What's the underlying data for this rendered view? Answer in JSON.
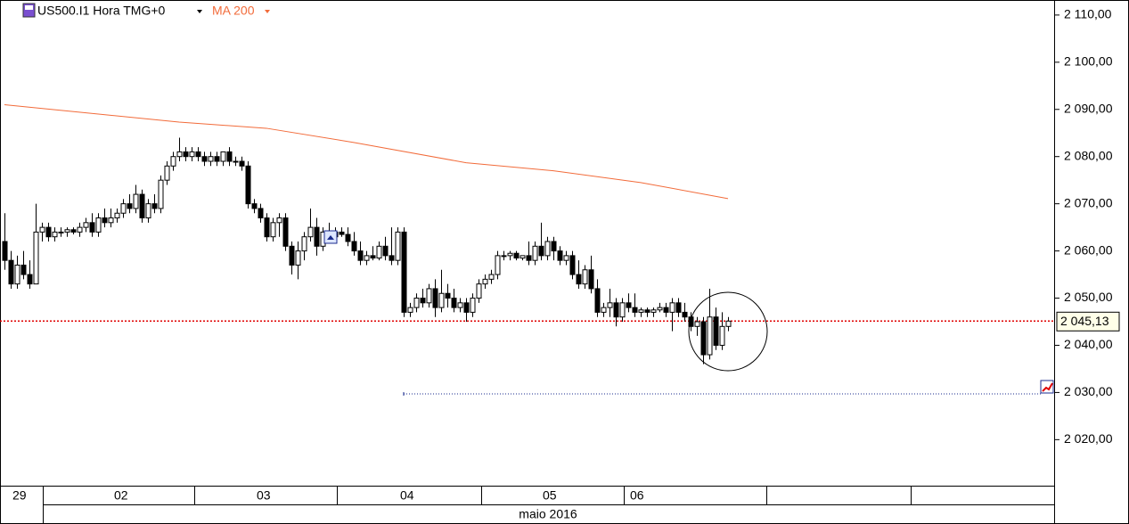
{
  "chart_data": {
    "type": "candlestick",
    "title": "US500.I1 Hora TMG+0",
    "indicator_label": "MA 200",
    "ylim": [
      2011,
      2113
    ],
    "yticks": [
      {
        "value": 2020,
        "label": "2 020,00"
      },
      {
        "value": 2030,
        "label": "2 030,00"
      },
      {
        "value": 2040,
        "label": "2 040,00"
      },
      {
        "value": 2050,
        "label": "2 050,00"
      },
      {
        "value": 2060,
        "label": "2 060,00"
      },
      {
        "value": 2070,
        "label": "2 070,00"
      },
      {
        "value": 2080,
        "label": "2 080,00"
      },
      {
        "value": 2090,
        "label": "2 090,00"
      },
      {
        "value": 2100,
        "label": "2 100,00"
      },
      {
        "value": 2110,
        "label": "2 110,00"
      }
    ],
    "day_labels": [
      "29",
      "02",
      "03",
      "04",
      "05",
      "06"
    ],
    "month_label": "maio 2016",
    "last_price": {
      "value": 2045.13,
      "label": "2 045,13",
      "color": "#e00000"
    },
    "level_line": {
      "value": 2029.7,
      "start_index": 64,
      "color": "#1a2a8c"
    },
    "ma": {
      "name": "MA 200",
      "color": "#f26b3a",
      "x": [
        0,
        28,
        42,
        56,
        74,
        88,
        102,
        116
      ],
      "values": [
        2091,
        2087.3,
        2086,
        2083,
        2078.7,
        2077,
        2074.5,
        2071.1
      ]
    },
    "ohlc": [
      [
        2062,
        2068,
        2056,
        2058
      ],
      [
        2058,
        2060,
        2052,
        2053
      ],
      [
        2053,
        2059,
        2052,
        2057
      ],
      [
        2057,
        2060,
        2054,
        2055
      ],
      [
        2055,
        2058,
        2052,
        2053
      ],
      [
        2053,
        2070,
        2053,
        2064
      ],
      [
        2064,
        2066,
        2062,
        2065
      ],
      [
        2065,
        2066,
        2062,
        2063
      ],
      [
        2063,
        2065,
        2062,
        2064
      ],
      [
        2064,
        2065,
        2063,
        2064
      ],
      [
        2064,
        2065,
        2063,
        2064.5
      ],
      [
        2064.5,
        2065,
        2063.5,
        2064
      ],
      [
        2064,
        2066,
        2063,
        2065
      ],
      [
        2065,
        2067,
        2064,
        2066
      ],
      [
        2066,
        2068,
        2063,
        2064
      ],
      [
        2064,
        2068,
        2063,
        2067
      ],
      [
        2067,
        2069,
        2065,
        2066
      ],
      [
        2066,
        2069,
        2065,
        2067
      ],
      [
        2067,
        2069,
        2066,
        2068
      ],
      [
        2068,
        2071,
        2067,
        2070
      ],
      [
        2070,
        2072,
        2068,
        2069
      ],
      [
        2069,
        2074,
        2068,
        2072
      ],
      [
        2072,
        2073,
        2066,
        2067
      ],
      [
        2067,
        2071,
        2066,
        2070
      ],
      [
        2070,
        2072,
        2068,
        2069
      ],
      [
        2069,
        2076,
        2068,
        2075
      ],
      [
        2075,
        2079,
        2074,
        2078
      ],
      [
        2078,
        2081,
        2077,
        2080
      ],
      [
        2080,
        2084,
        2079,
        2081
      ],
      [
        2081,
        2082,
        2079,
        2080
      ],
      [
        2080,
        2082,
        2079,
        2081
      ],
      [
        2081,
        2082,
        2079,
        2080
      ],
      [
        2080,
        2081,
        2078,
        2079
      ],
      [
        2079,
        2081,
        2078,
        2080
      ],
      [
        2080,
        2081,
        2078,
        2079
      ],
      [
        2079,
        2081,
        2078,
        2081
      ],
      [
        2081,
        2082,
        2078,
        2079
      ],
      [
        2079,
        2080,
        2078,
        2079
      ],
      [
        2079,
        2080,
        2077,
        2078
      ],
      [
        2078,
        2079,
        2069,
        2070
      ],
      [
        2070,
        2071,
        2068,
        2069
      ],
      [
        2069,
        2070,
        2066,
        2067
      ],
      [
        2067,
        2068,
        2062,
        2063
      ],
      [
        2063,
        2067,
        2062,
        2066
      ],
      [
        2066,
        2068,
        2063,
        2067
      ],
      [
        2067,
        2068,
        2060,
        2061
      ],
      [
        2061,
        2062,
        2055,
        2057
      ],
      [
        2057,
        2062,
        2054,
        2060
      ],
      [
        2060,
        2064,
        2058,
        2063
      ],
      [
        2063,
        2069,
        2062,
        2065
      ],
      [
        2065,
        2067,
        2059,
        2061
      ],
      [
        2061,
        2065,
        2060,
        2064
      ],
      [
        2064,
        2066,
        2062,
        2063
      ],
      [
        2063,
        2065,
        2062,
        2064
      ],
      [
        2064,
        2065,
        2063,
        2063.5
      ],
      [
        2063.5,
        2065,
        2061,
        2062
      ],
      [
        2062,
        2064,
        2059,
        2060
      ],
      [
        2060,
        2062,
        2057,
        2058
      ],
      [
        2058,
        2060,
        2057,
        2059
      ],
      [
        2059,
        2061,
        2058,
        2058.5
      ],
      [
        2058.5,
        2062,
        2058,
        2061
      ],
      [
        2061,
        2063,
        2058,
        2059
      ],
      [
        2059,
        2065,
        2057,
        2058
      ],
      [
        2058,
        2065,
        2057,
        2064
      ],
      [
        2064,
        2065,
        2046,
        2047
      ],
      [
        2047,
        2049,
        2046,
        2048
      ],
      [
        2048,
        2051,
        2047,
        2050
      ],
      [
        2050,
        2052,
        2048,
        2049
      ],
      [
        2049,
        2053,
        2048,
        2052
      ],
      [
        2052,
        2054,
        2046,
        2048
      ],
      [
        2048,
        2056,
        2047,
        2051
      ],
      [
        2051,
        2053,
        2048,
        2050
      ],
      [
        2050,
        2052,
        2047,
        2048
      ],
      [
        2048,
        2050,
        2047,
        2049
      ],
      [
        2049,
        2050,
        2045,
        2047
      ],
      [
        2047,
        2051,
        2046,
        2050
      ],
      [
        2050,
        2054,
        2049,
        2053
      ],
      [
        2053,
        2055,
        2052,
        2054
      ],
      [
        2054,
        2056,
        2053,
        2055
      ],
      [
        2055,
        2060,
        2054,
        2059
      ],
      [
        2059,
        2060,
        2058,
        2059
      ],
      [
        2059,
        2060,
        2058,
        2059.5
      ],
      [
        2059.5,
        2060,
        2058,
        2058.5
      ],
      [
        2058.5,
        2059,
        2058,
        2059
      ],
      [
        2059,
        2062,
        2057,
        2058
      ],
      [
        2058,
        2062,
        2057,
        2061
      ],
      [
        2061,
        2066,
        2058,
        2059
      ],
      [
        2059,
        2063,
        2058,
        2062
      ],
      [
        2062,
        2063,
        2058,
        2060
      ],
      [
        2060,
        2061,
        2057,
        2058
      ],
      [
        2058,
        2060,
        2057,
        2059
      ],
      [
        2059,
        2060,
        2054,
        2055
      ],
      [
        2055,
        2058,
        2052,
        2053
      ],
      [
        2053,
        2057,
        2052,
        2056
      ],
      [
        2056,
        2059,
        2051,
        2052
      ],
      [
        2052,
        2054,
        2046,
        2047
      ],
      [
        2047,
        2049,
        2046,
        2048
      ],
      [
        2048,
        2052,
        2046,
        2049
      ],
      [
        2049,
        2050,
        2044,
        2046
      ],
      [
        2046,
        2050,
        2045,
        2049
      ],
      [
        2049,
        2051,
        2047,
        2048
      ],
      [
        2048,
        2051,
        2046,
        2047
      ],
      [
        2047,
        2048,
        2046,
        2047.5
      ],
      [
        2047.5,
        2048,
        2046,
        2047
      ],
      [
        2047,
        2048,
        2046,
        2047.5
      ],
      [
        2047.5,
        2049,
        2047,
        2048
      ],
      [
        2048,
        2049,
        2046,
        2047
      ],
      [
        2047,
        2050,
        2043,
        2049
      ],
      [
        2049,
        2050,
        2046,
        2047
      ],
      [
        2047,
        2049,
        2045,
        2046
      ],
      [
        2046,
        2047,
        2043,
        2044
      ],
      [
        2044,
        2046,
        2042,
        2045
      ],
      [
        2045,
        2046,
        2036,
        2038
      ],
      [
        2038,
        2052,
        2037,
        2046
      ],
      [
        2046,
        2048,
        2039,
        2040
      ],
      [
        2040,
        2047,
        2039,
        2044
      ],
      [
        2044,
        2046,
        2043,
        2045.13
      ]
    ]
  }
}
